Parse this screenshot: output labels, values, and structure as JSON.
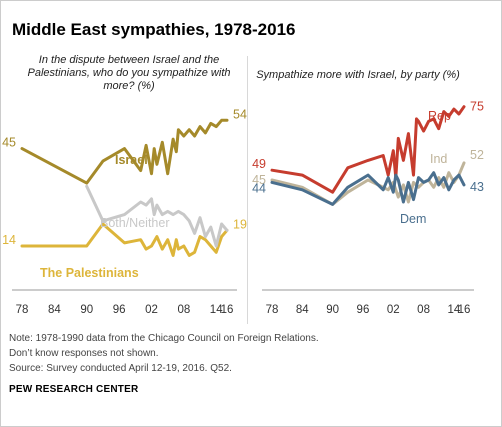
{
  "title": "Middle East sympathies, 1978-2016",
  "notes": [
    "Note: 1978-1990 data from the Chicago Council on Foreign Relations.",
    "Don’t know responses not shown.",
    "Source: Survey conducted April 12-19, 2016. Q52."
  ],
  "credit": "PEW RESEARCH CENTER",
  "colors": {
    "israel": "#A58A2A",
    "palestinians": "#DDB53A",
    "both_neither": "#C8C8C8",
    "rep": "#C63C2E",
    "ind": "#BFB49A",
    "dem": "#4A6F8E"
  },
  "chart_data": [
    {
      "type": "line",
      "title": "In the dispute between Israel and the Palestinians, who do you sympathize with more? (%)",
      "x_tick_labels": [
        "78",
        "84",
        "90",
        "96",
        "02",
        "08",
        "14",
        "16"
      ],
      "x_ticks": [
        1978,
        1984,
        1990,
        1996,
        2002,
        2008,
        2014,
        2016
      ],
      "xlim": [
        1978,
        2016
      ],
      "ylim": [
        0,
        70
      ],
      "grid": false,
      "series": [
        {
          "name": "Israel",
          "color_key": "israel",
          "start_label": "45",
          "end_label": "54",
          "x": [
            1978,
            1990,
            1993,
            1997,
            2000,
            2001,
            2002,
            2002.5,
            2003,
            2004,
            2005,
            2006,
            2006.6,
            2007,
            2008,
            2009,
            2010,
            2011,
            2012,
            2013,
            2014,
            2015,
            2016
          ],
          "y": [
            45,
            34,
            41,
            45,
            38,
            46,
            37,
            45,
            40,
            47,
            37,
            48,
            44,
            51,
            49,
            51,
            49,
            52,
            50,
            53,
            52,
            54,
            54
          ]
        },
        {
          "name": "The Palestinians",
          "color_key": "palestinians",
          "start_label": "14",
          "end_label": "19",
          "x": [
            1978,
            1990,
            1993,
            1997,
            2000,
            2001,
            2002,
            2003,
            2004,
            2005,
            2006,
            2006.6,
            2007,
            2008,
            2009,
            2010,
            2011,
            2012,
            2013,
            2014,
            2015,
            2016
          ],
          "y": [
            14,
            14,
            21,
            15,
            16,
            13,
            14,
            17,
            13,
            16,
            11,
            16,
            13,
            14,
            11,
            12,
            17,
            16,
            14,
            12,
            17,
            19
          ]
        },
        {
          "name": "Both/Neither",
          "color_key": "both_neither",
          "x": [
            1990,
            1993,
            1997,
            2000,
            2001,
            2002,
            2002.5,
            2003,
            2004,
            2005,
            2006,
            2007,
            2008,
            2009,
            2010,
            2011,
            2012,
            2013,
            2014,
            2015,
            2016
          ],
          "y": [
            33,
            22,
            24,
            28,
            27,
            29,
            24,
            27,
            24,
            25,
            24,
            25,
            24,
            22,
            18,
            23,
            17,
            20,
            14,
            21,
            19
          ]
        }
      ]
    },
    {
      "type": "line",
      "title": "Sympathize more with Israel, by party (%)",
      "x_tick_labels": [
        "78",
        "84",
        "90",
        "96",
        "02",
        "08",
        "14",
        "16"
      ],
      "x_ticks": [
        1978,
        1984,
        1990,
        1996,
        2002,
        2008,
        2014,
        2016
      ],
      "xlim": [
        1978,
        2016
      ],
      "ylim": [
        0,
        90
      ],
      "grid": false,
      "series": [
        {
          "name": "Rep",
          "color_key": "rep",
          "start_label": "49",
          "end_label": "75",
          "x": [
            1978,
            1984,
            1990,
            1993,
            1997,
            2000,
            2001,
            2002,
            2002.5,
            2003,
            2004,
            2005,
            2006,
            2006.6,
            2007,
            2008,
            2009,
            2010,
            2011,
            2012,
            2013,
            2014,
            2015,
            2016
          ],
          "y": [
            49,
            47,
            40,
            50,
            53,
            55,
            47,
            57,
            46,
            62,
            53,
            64,
            47,
            70,
            69,
            65,
            69,
            70,
            66,
            73,
            71,
            74,
            72,
            75
          ]
        },
        {
          "name": "Ind",
          "color_key": "ind",
          "start_label": "45",
          "end_label": "52",
          "x": [
            1978,
            1984,
            1990,
            1993,
            1997,
            2000,
            2001,
            2002,
            2003,
            2004,
            2005,
            2006,
            2007,
            2008,
            2009,
            2010,
            2011,
            2012,
            2013,
            2014,
            2015,
            2016
          ],
          "y": [
            45,
            42,
            35,
            40,
            45,
            42,
            41,
            44,
            38,
            43,
            36,
            44,
            42,
            44,
            45,
            42,
            46,
            42,
            48,
            44,
            47,
            52
          ]
        },
        {
          "name": "Dem",
          "color_key": "dem",
          "start_label": "44",
          "end_label": "43",
          "x": [
            1978,
            1984,
            1990,
            1993,
            1997,
            2000,
            2001,
            2002,
            2002.5,
            2003,
            2004,
            2005,
            2006,
            2007,
            2008,
            2009,
            2010,
            2011,
            2012,
            2013,
            2014,
            2015,
            2016
          ],
          "y": [
            44,
            41,
            35,
            42,
            47,
            41,
            46,
            40,
            47,
            45,
            36,
            44,
            37,
            46,
            44,
            45,
            48,
            43,
            46,
            41,
            45,
            47,
            43
          ]
        }
      ]
    }
  ]
}
